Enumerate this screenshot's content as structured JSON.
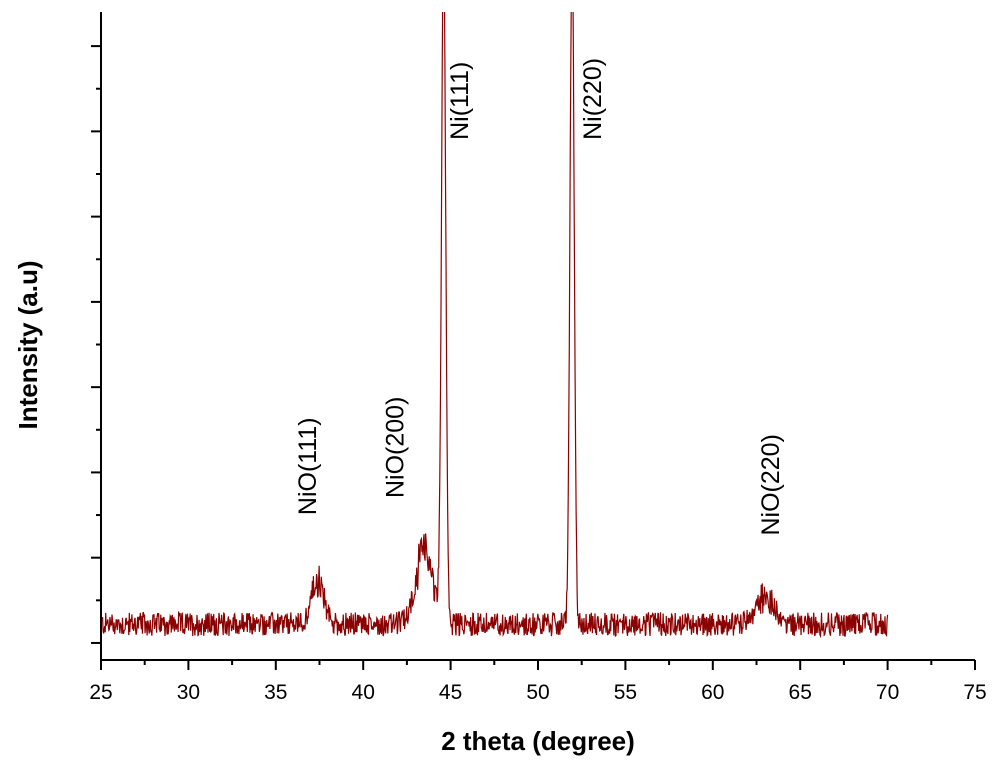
{
  "colors": {
    "series": "#8b0000",
    "axis": "#000000"
  },
  "chart_data": {
    "type": "line",
    "title": "",
    "xlabel": "2 theta (degree)",
    "ylabel": "Intensity (a.u)",
    "xlim": [
      25,
      75
    ],
    "ylim": [
      -1,
      37
    ],
    "xticks": [
      "25",
      "30",
      "35",
      "40",
      "45",
      "50",
      "55",
      "60",
      "65",
      "70",
      "75"
    ],
    "y_ticks_labeled": false,
    "grid": false,
    "legend": "none",
    "series": [
      {
        "x_range": [
          25,
          70
        ],
        "baseline": 1.1,
        "noise_amplitude": 0.7,
        "peaks": [
          {
            "x": 37.4,
            "height": 2.5,
            "width": 0.35
          },
          {
            "x": 43.5,
            "height": 4.0,
            "width": 0.5
          },
          {
            "x": 44.6,
            "height": 40,
            "width": 0.12
          },
          {
            "x": 51.95,
            "height": 40,
            "width": 0.12
          },
          {
            "x": 63.0,
            "height": 1.6,
            "width": 0.5
          }
        ]
      }
    ],
    "annotations": [
      {
        "text": "NiO(111)",
        "x": 37.3,
        "y": 7.5
      },
      {
        "text": "NiO(200)",
        "x": 42.3,
        "y": 8.5
      },
      {
        "text": "Ni(111)",
        "x": 46.0,
        "y": 29.5
      },
      {
        "text": "Ni(220)",
        "x": 53.6,
        "y": 29.5
      },
      {
        "text": "NiO(220)",
        "x": 63.8,
        "y": 6.3
      }
    ]
  }
}
